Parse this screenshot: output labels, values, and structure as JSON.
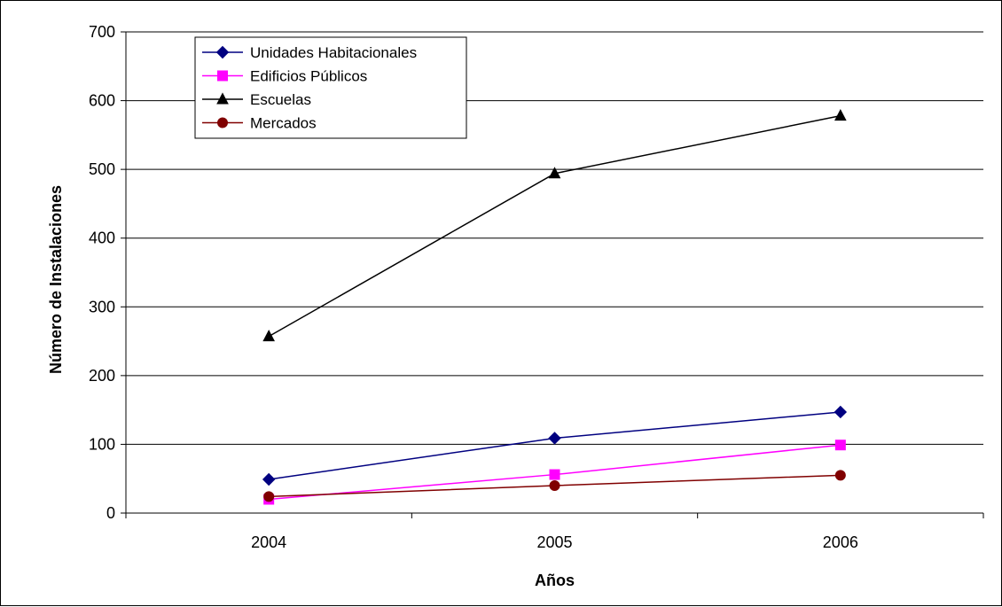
{
  "chart_data": {
    "type": "line",
    "categories": [
      "2004",
      "2005",
      "2006"
    ],
    "xlabel": "Años",
    "ylabel": "Número de Instalaciones",
    "ylim": [
      0,
      700
    ],
    "yticks": [
      0,
      100,
      200,
      300,
      400,
      500,
      600,
      700
    ],
    "grid": "horizontal",
    "legend_position": "top-left",
    "series": [
      {
        "name": "Unidades Habitacionales",
        "values": [
          49,
          109,
          147
        ],
        "color": "#000080",
        "marker": "diamond"
      },
      {
        "name": "Edificios Públicos",
        "values": [
          20,
          56,
          99
        ],
        "color": "#FF00FF",
        "marker": "square"
      },
      {
        "name": "Escuelas",
        "values": [
          257,
          494,
          578
        ],
        "color": "#000000",
        "marker": "triangle"
      },
      {
        "name": "Mercados",
        "values": [
          24,
          40,
          55
        ],
        "color": "#800000",
        "marker": "circle"
      }
    ]
  }
}
